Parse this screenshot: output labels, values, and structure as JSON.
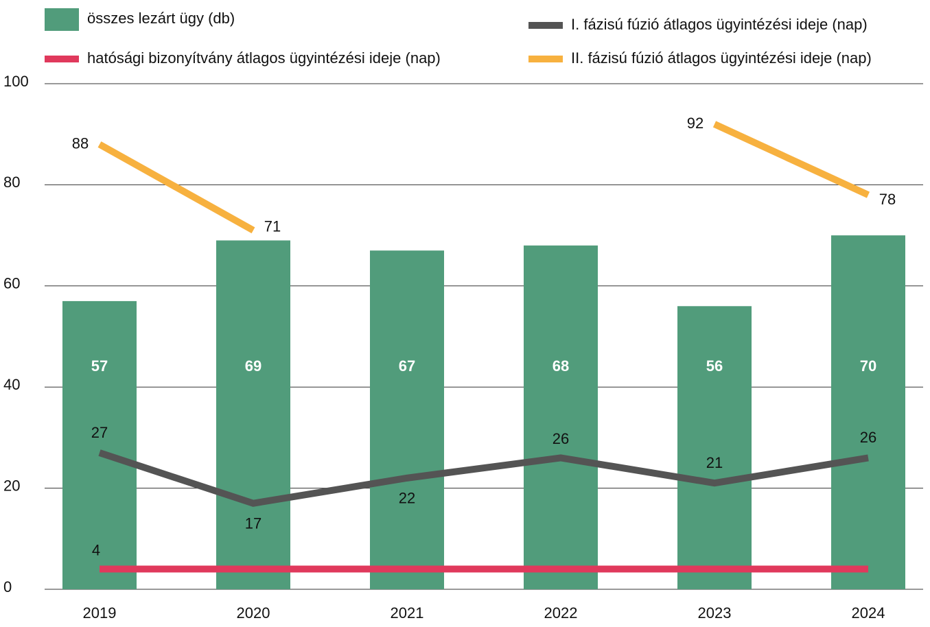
{
  "chart_data": {
    "type": "bar_line",
    "categories": [
      "2019",
      "2020",
      "2021",
      "2022",
      "2023",
      "2024"
    ],
    "ylim": [
      0,
      100
    ],
    "yticks": [
      0,
      20,
      40,
      60,
      80,
      100
    ],
    "grid": true,
    "series": [
      {
        "name": "összes lezárt ügy (db)",
        "type": "bar",
        "color": "#519c7b",
        "values": [
          57,
          69,
          67,
          68,
          56,
          70
        ]
      },
      {
        "name": "I. fázisú fúzió átlagos ügyintézési ideje (nap)",
        "type": "line",
        "color": "#545454",
        "values": [
          27,
          17,
          22,
          26,
          21,
          26
        ]
      },
      {
        "name": "hatósági bizonyítvány átlagos ügyintézési ideje (nap)",
        "type": "line",
        "color": "#e0395c",
        "values": [
          4,
          4,
          4,
          4,
          4,
          4
        ],
        "value_labels": [
          "4",
          null,
          null,
          null,
          null,
          null
        ]
      },
      {
        "name": "II. fázisú fúzió átlagos ügyintézési ideje (nap)",
        "type": "line",
        "color": "#f7b13f",
        "values": [
          88,
          71,
          null,
          null,
          92,
          78
        ]
      }
    ]
  }
}
